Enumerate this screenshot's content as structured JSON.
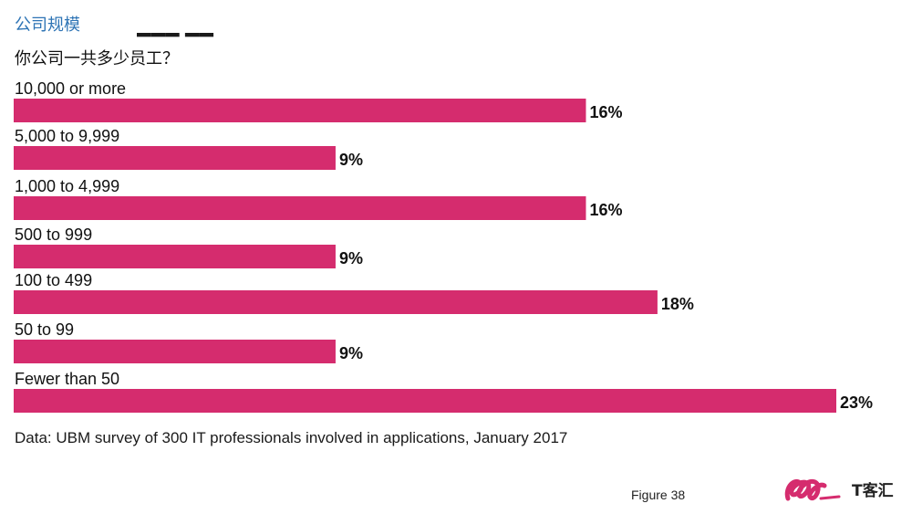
{
  "header": {
    "title": "公司规模",
    "question": "你公司一共多少员工？"
  },
  "chart_data": {
    "type": "bar",
    "orientation": "horizontal",
    "categories": [
      "10,000 or more",
      "5,000 to 9,999",
      "1,000 to 4,999",
      "500 to 999",
      "100 to 499",
      "50 to 99",
      "Fewer than 50"
    ],
    "values": [
      16,
      9,
      16,
      9,
      18,
      9,
      23
    ],
    "value_labels": [
      "16%",
      "9%",
      "16%",
      "9%",
      "18%",
      "9%",
      "23%"
    ],
    "unit": "%",
    "xlim": [
      0,
      23
    ],
    "grid": false,
    "bar_color": "#d52c6e"
  },
  "footer": {
    "source": "Data: UBM survey of 300 IT professionals involved in applications, January 2017",
    "figure": "Figure 38"
  },
  "logo": {
    "text": "T客汇",
    "color": "#d52c6e"
  }
}
